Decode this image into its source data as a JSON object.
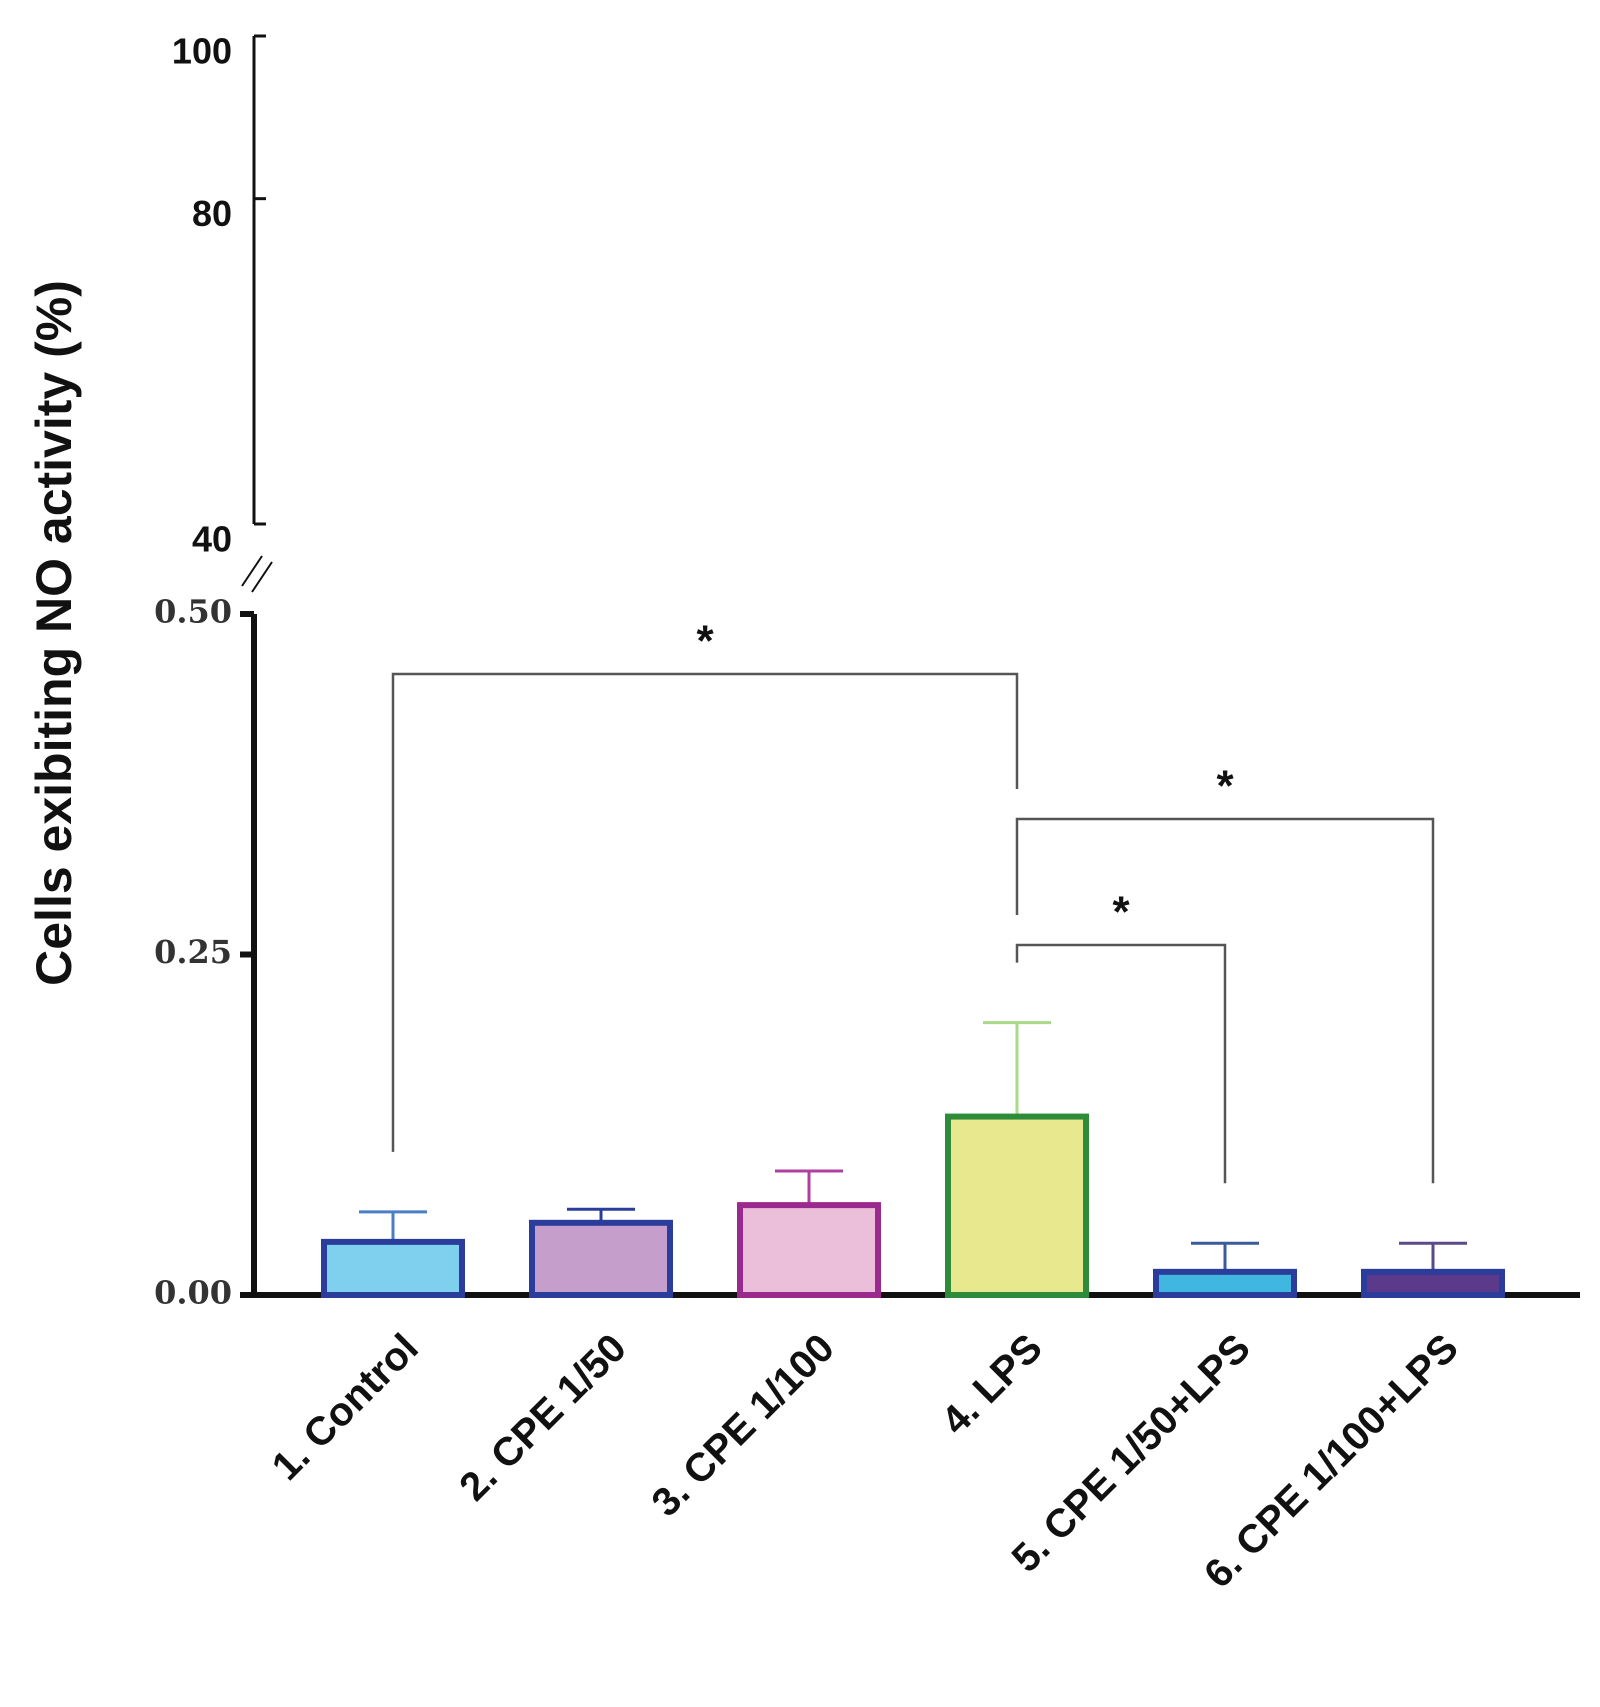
{
  "chart_data": {
    "type": "bar",
    "y_label": "Cells exibiting NO activity (%)",
    "categories": [
      "1. Control",
      "2. CPE 1/50",
      "3. CPE 1/100",
      "4. LPS",
      "5. CPE 1/50+LPS",
      "6. CPE 1/100+LPS"
    ],
    "values": [
      0.039,
      0.053,
      0.066,
      0.131,
      0.017,
      0.017
    ],
    "errors": [
      0.022,
      0.01,
      0.025,
      0.069,
      0.021,
      0.021
    ],
    "colors": [
      "#7fd0ee",
      "#c59ecb",
      "#ebbfd9",
      "#e8e98e",
      "#3fb7e0",
      "#5b3a8c"
    ],
    "edge_colors": [
      "#2b3d9a",
      "#2b3d9a",
      "#9b2a8e",
      "#2e8b3a",
      "#2b3d9a",
      "#2b3d9a"
    ],
    "error_colors": [
      "#4a7fc6",
      "#2b3d9a",
      "#b040a0",
      "#a8d98a",
      "#3b5a9a",
      "#5a4a8a"
    ],
    "ylim": [
      0,
      0.5
    ],
    "yticks": [
      {
        "value": 0,
        "label": "0.00"
      },
      {
        "value": 0.25,
        "label": "0.25"
      },
      {
        "value": 0.5,
        "label": "0.50"
      }
    ],
    "upper_ylim": [
      40,
      100
    ],
    "upper_yticks": [
      40,
      80,
      100
    ],
    "significance": [
      {
        "from": 0,
        "to": 3,
        "label": "*"
      },
      {
        "from": 3,
        "to": 5,
        "label": "*"
      },
      {
        "from": 3,
        "to": 4,
        "label": "*"
      }
    ]
  }
}
